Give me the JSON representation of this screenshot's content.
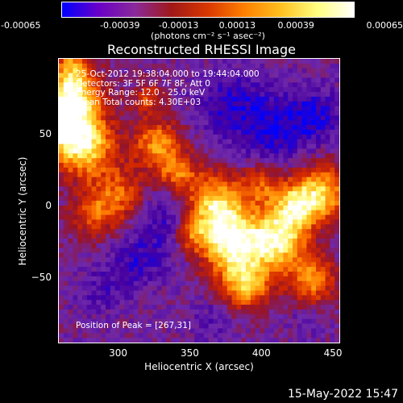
{
  "colorbar": {
    "tick_labels": [
      "-0.00065",
      "-0.00039",
      "-0.00013",
      "0.00013",
      "0.00039",
      "0.00065"
    ],
    "tick_values": [
      -0.00065,
      -0.00039,
      -0.00013,
      0.00013,
      0.00039,
      0.00065
    ],
    "units": "(photons cm⁻² s⁻¹ asec⁻²)",
    "colors": [
      "#0000ff",
      "#6a00c8",
      "#8a2a9a",
      "#a01818",
      "#d83800",
      "#ff8000",
      "#ffc020",
      "#ffff80",
      "#ffffff"
    ]
  },
  "chart_data": {
    "type": "heatmap",
    "title": "Reconstructed RHESSI Image",
    "xlabel": "Heliocentric X (arcsec)",
    "ylabel": "Heliocentric Y (arcsec)",
    "xlim": [
      258,
      455
    ],
    "ylim": [
      -96,
      103
    ],
    "xticks": [
      300,
      350,
      400,
      450
    ],
    "yticks": [
      -50,
      0,
      50
    ],
    "xtick_labels": [
      "300",
      "350",
      "400",
      "450"
    ],
    "ytick_labels": [
      "−50",
      "0",
      "50"
    ],
    "value_range": [
      -0.00065,
      0.00065
    ],
    "annotations": [
      "25-Oct-2012 19:38:04.000 to 19:44:04.000",
      "Detectors: 3F 5F 6F 7F 8F, Att 0",
      "Energy Range: 12.0 - 25.0 keV",
      "Clean     Total counts: 4.30E+03"
    ],
    "peak_label": "Position of Peak = [267,31]",
    "peak_position": [
      267,
      31
    ]
  },
  "footer": {
    "date_stamp": "15-May-2022 15:47"
  }
}
